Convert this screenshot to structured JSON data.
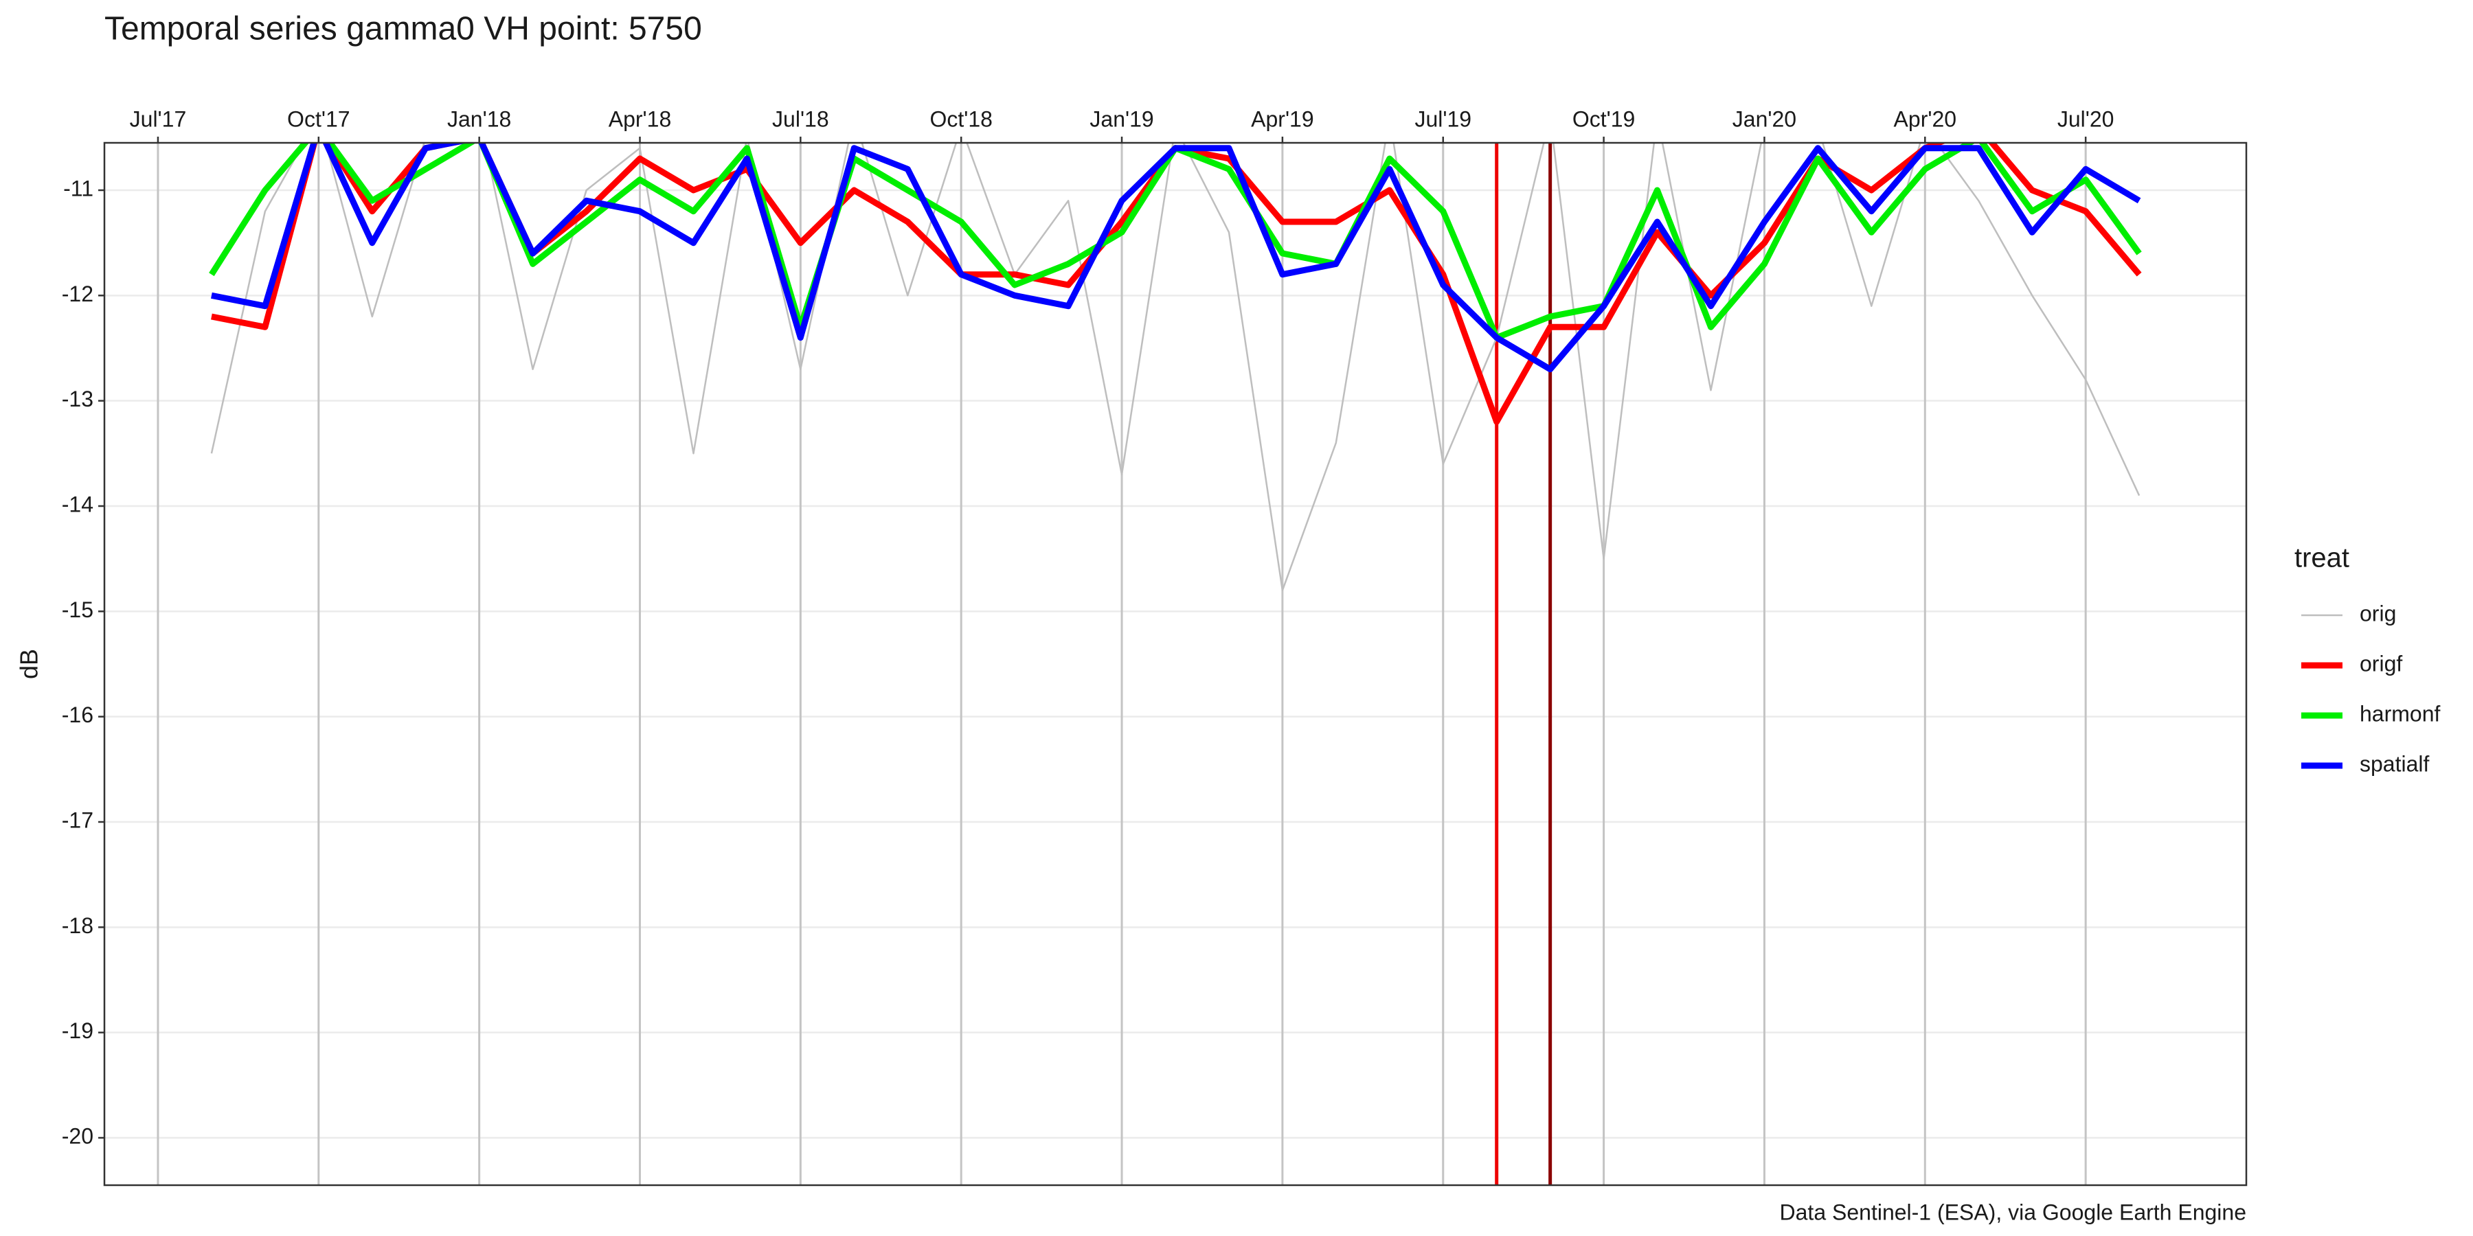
{
  "chart_data": {
    "type": "line",
    "title": "Temporal series gamma0 VH point: 5750",
    "y_label": "dB",
    "caption": "Data Sentinel-1 (ESA), via Google Earth Engine",
    "legend_title": "treat",
    "legend": "right",
    "grid": true,
    "x": [
      "2017-08",
      "2017-09",
      "2017-10",
      "2017-11",
      "2017-12",
      "2018-01",
      "2018-02",
      "2018-03",
      "2018-04",
      "2018-05",
      "2018-06",
      "2018-07",
      "2018-08",
      "2018-09",
      "2018-10",
      "2018-11",
      "2018-12",
      "2019-01",
      "2019-02",
      "2019-03",
      "2019-04",
      "2019-05",
      "2019-06",
      "2019-07",
      "2019-08",
      "2019-09",
      "2019-10",
      "2019-11",
      "2019-12",
      "2020-01",
      "2020-02",
      "2020-03",
      "2020-04",
      "2020-05",
      "2020-06",
      "2020-07",
      "2020-08"
    ],
    "xlim": [
      "2017-06",
      "2020-10"
    ],
    "xticks": [
      {
        "value": "2017-07",
        "label": "Jul'17"
      },
      {
        "value": "2017-10",
        "label": "Oct'17"
      },
      {
        "value": "2018-01",
        "label": "Jan'18"
      },
      {
        "value": "2018-04",
        "label": "Apr'18"
      },
      {
        "value": "2018-07",
        "label": "Jul'18"
      },
      {
        "value": "2018-10",
        "label": "Oct'18"
      },
      {
        "value": "2019-01",
        "label": "Jan'19"
      },
      {
        "value": "2019-04",
        "label": "Apr'19"
      },
      {
        "value": "2019-07",
        "label": "Jul'19"
      },
      {
        "value": "2019-10",
        "label": "Oct'19"
      },
      {
        "value": "2020-01",
        "label": "Jan'20"
      },
      {
        "value": "2020-04",
        "label": "Apr'20"
      },
      {
        "value": "2020-07",
        "label": "Jul'20"
      }
    ],
    "ylim": [
      -20.45,
      -10.55
    ],
    "yticks": [
      -20,
      -19,
      -18,
      -17,
      -16,
      -15,
      -14,
      -13,
      -12,
      -11
    ],
    "vlines": [
      {
        "x": "2019-08",
        "color": "#ee0000"
      },
      {
        "x": "2019-09",
        "color": "#8b0000"
      }
    ],
    "series": [
      {
        "name": "orig",
        "color": "#bebebe",
        "width": 2.5,
        "values": [
          -13.5,
          -11.2,
          -10.3,
          -12.2,
          -10.5,
          -10.3,
          -12.7,
          -11.0,
          -10.6,
          -13.5,
          -10.5,
          -12.7,
          -10.3,
          -12.0,
          -10.4,
          -11.8,
          -11.1,
          -13.7,
          -10.4,
          -11.4,
          -14.8,
          -13.4,
          -10.3,
          -13.6,
          -12.4,
          -10.3,
          -14.5,
          -10.3,
          -12.9,
          -10.4,
          -10.4,
          -12.1,
          -10.4,
          -11.1,
          -12.0,
          -12.8,
          -13.9
        ]
      },
      {
        "name": "origf",
        "color": "#ff0000",
        "width": 9,
        "values": [
          -12.2,
          -12.3,
          -10.4,
          -11.2,
          -10.6,
          -10.5,
          -11.6,
          -11.2,
          -10.7,
          -11.0,
          -10.8,
          -11.5,
          -11.0,
          -11.3,
          -11.8,
          -11.8,
          -11.9,
          -11.3,
          -10.6,
          -10.7,
          -11.3,
          -11.3,
          -11.0,
          -11.8,
          -13.2,
          -12.3,
          -12.3,
          -11.4,
          -12.0,
          -11.5,
          -10.7,
          -11.0,
          -10.6,
          -10.4,
          -11.0,
          -11.2,
          -11.8
        ]
      },
      {
        "name": "harmonf",
        "color": "#00ee00",
        "width": 9,
        "values": [
          -11.8,
          -11.0,
          -10.4,
          -11.1,
          -10.8,
          -10.5,
          -11.7,
          -11.3,
          -10.9,
          -11.2,
          -10.6,
          -12.3,
          -10.7,
          -11.0,
          -11.3,
          -11.9,
          -11.7,
          -11.4,
          -10.6,
          -10.8,
          -11.6,
          -11.7,
          -10.7,
          -11.2,
          -12.4,
          -12.2,
          -12.1,
          -11.0,
          -12.3,
          -11.7,
          -10.7,
          -11.4,
          -10.8,
          -10.5,
          -11.2,
          -10.9,
          -11.6
        ]
      },
      {
        "name": "spatialf",
        "color": "#0000ff",
        "width": 9,
        "values": [
          -12.0,
          -12.1,
          -10.4,
          -11.5,
          -10.6,
          -10.5,
          -11.6,
          -11.1,
          -11.2,
          -11.5,
          -10.7,
          -12.4,
          -10.6,
          -10.8,
          -11.8,
          -12.0,
          -12.1,
          -11.1,
          -10.6,
          -10.6,
          -11.8,
          -11.7,
          -10.8,
          -11.9,
          -12.4,
          -12.7,
          -12.1,
          -11.3,
          -12.1,
          -11.3,
          -10.6,
          -11.2,
          -10.6,
          -10.6,
          -11.4,
          -10.8,
          -11.1
        ]
      }
    ]
  }
}
